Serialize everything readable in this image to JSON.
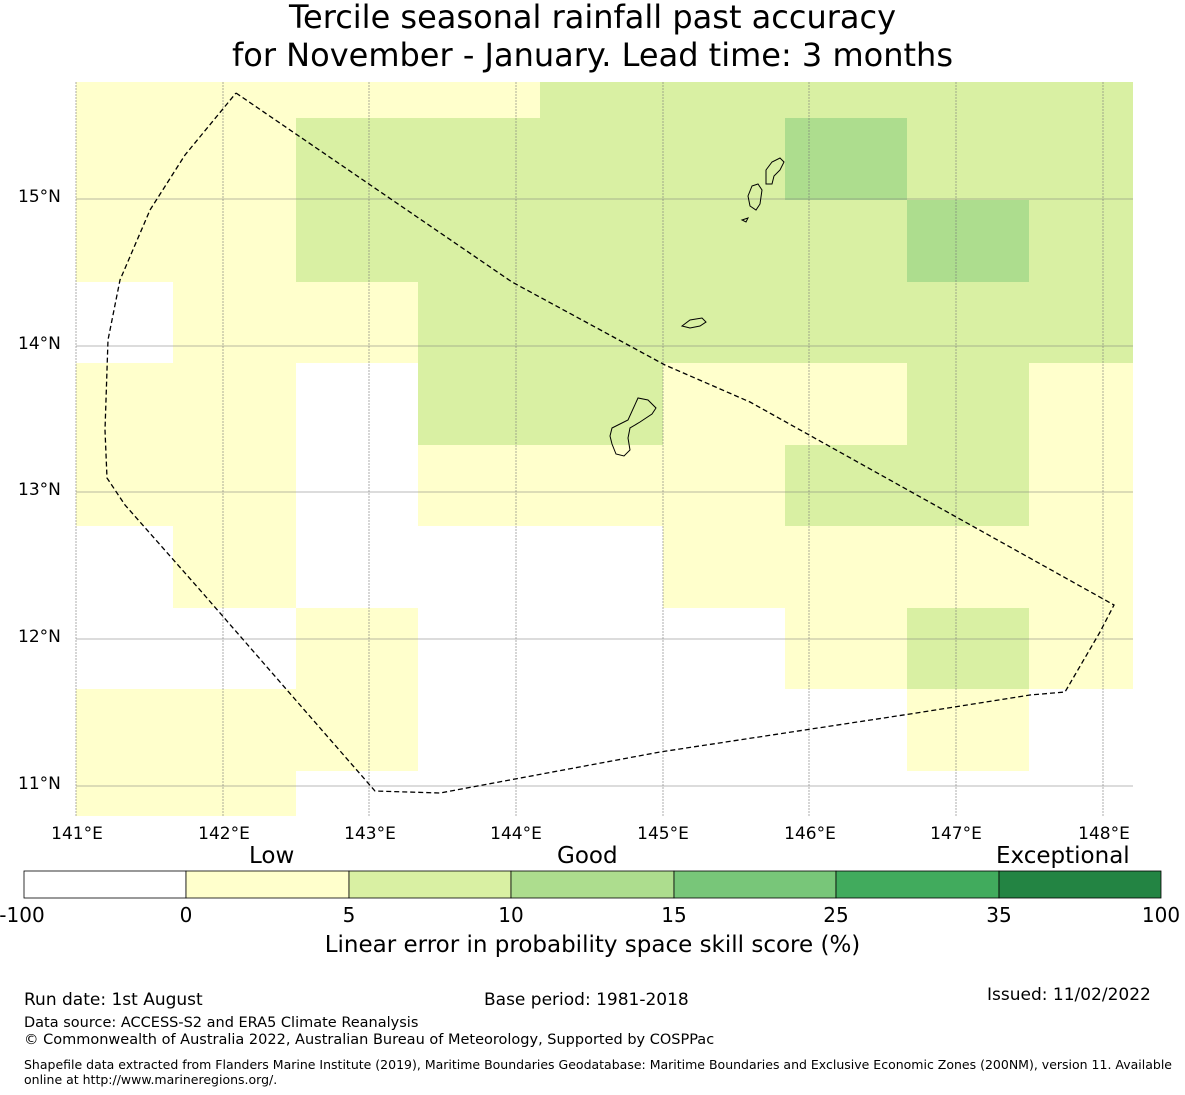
{
  "title": {
    "line1": "Tercile seasonal rainfall past accuracy",
    "line2": "for November - January. Lead time: 3 months"
  },
  "map": {
    "lat_labels": [
      "15°N",
      "14°N",
      "13°N",
      "12°N",
      "11°N"
    ],
    "lon_labels": [
      "141°E",
      "142°E",
      "143°E",
      "144°E",
      "145°E",
      "146°E",
      "147°E",
      "148°E"
    ],
    "grid": true,
    "land_outline_color": "#000000",
    "eez_boundary_style": "dashed",
    "cell_values": [
      [
        1,
        1,
        1,
        1,
        2,
        2,
        2,
        2,
        2
      ],
      [
        1,
        1,
        2,
        2,
        2,
        2,
        3,
        2,
        2
      ],
      [
        1,
        1,
        2,
        2,
        2,
        2,
        2,
        3,
        2
      ],
      [
        0,
        1,
        1,
        2,
        2,
        2,
        2,
        2,
        2
      ],
      [
        1,
        1,
        0,
        2,
        2,
        1,
        1,
        2,
        1
      ],
      [
        1,
        1,
        0,
        1,
        1,
        1,
        2,
        2,
        1
      ],
      [
        0,
        1,
        0,
        0,
        0,
        1,
        1,
        1,
        1
      ],
      [
        0,
        0,
        1,
        0,
        0,
        0,
        1,
        2,
        1
      ],
      [
        1,
        1,
        1,
        0,
        0,
        0,
        0,
        1,
        0
      ],
      [
        1,
        1,
        0,
        0,
        0,
        0,
        0,
        0,
        0
      ]
    ]
  },
  "colorbar": {
    "categories": [
      "Low",
      "Good",
      "Exceptional"
    ],
    "ticks": [
      "-100",
      "0",
      "5",
      "10",
      "15",
      "25",
      "35",
      "100"
    ],
    "colors": [
      "#ffffff",
      "#ffffcc",
      "#d9f0a3",
      "#addd8e",
      "#78c679",
      "#41ab5d",
      "#238443"
    ],
    "title": "Linear error in probability space skill score (%)"
  },
  "footer": {
    "run_date": "Run date: 1st August",
    "base_period": "Base period: 1981-2018",
    "issued": "Issued: 11/02/2022",
    "data_source": "Data source: ACCESS-S2 and ERA5 Climate Reanalysis",
    "copyright": "© Commonwealth of Australia 2022, Australian Bureau of Meteorology, Supported by COSPPac",
    "shapefile": "Shapefile data extracted from Flanders Marine Institute (2019), Maritime Boundaries Geodatabase: Maritime Boundaries and Exclusive Economic Zones (200NM), version 11. Available online at http://www.marineregions.org/."
  }
}
